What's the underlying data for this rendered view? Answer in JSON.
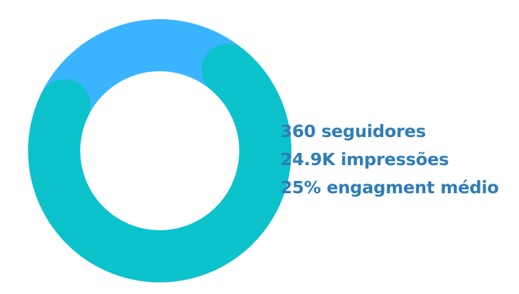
{
  "chart_data": {
    "type": "donut",
    "title": "",
    "segments": [
      {
        "name": "",
        "value": 71,
        "color": "#0cc2cb"
      },
      {
        "name": "",
        "value": 29,
        "color": "#3ab4ff"
      }
    ],
    "start_angle_deg": 40,
    "direction": "clockwise",
    "rounded_caps": true,
    "annotations": [
      "360 seguidores",
      "24.9K impressões",
      "25% engagment médio"
    ]
  },
  "colors": {
    "ring_primary": "#0cc2cb",
    "ring_secondary": "#3ab4ff",
    "text": "#2f7db8",
    "background": "#ffffff"
  }
}
